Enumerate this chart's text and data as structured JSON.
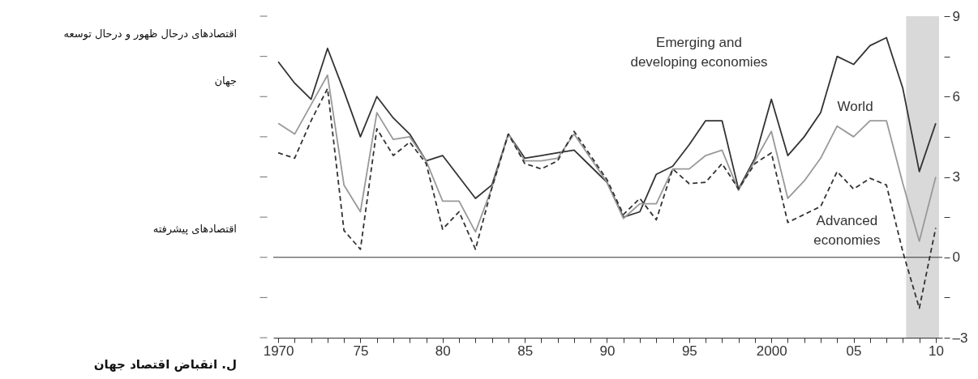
{
  "chart_data": {
    "type": "line",
    "title": "ل. انقباض اقتصاد جهان",
    "annotations": [
      "اقتصادهای درحال ظهور و درحال توسعه",
      "جهان",
      "اقتصادهای پیشرفته"
    ],
    "x": [
      1970,
      1971,
      1972,
      1973,
      1974,
      1975,
      1976,
      1977,
      1978,
      1979,
      1980,
      1981,
      1982,
      1983,
      1984,
      1985,
      1986,
      1987,
      1988,
      1989,
      1990,
      1991,
      1992,
      1993,
      1994,
      1995,
      1996,
      1997,
      1998,
      1999,
      2000,
      2001,
      2002,
      2003,
      2004,
      2005,
      2006,
      2007,
      2008,
      2009,
      2010
    ],
    "series": [
      {
        "name": "Emerging and\ndeveloping economies",
        "color": "#333333",
        "line_style": "solid",
        "values": [
          7.3,
          6.5,
          5.9,
          7.8,
          6.2,
          4.5,
          6.0,
          5.2,
          4.6,
          3.6,
          3.8,
          3.0,
          2.2,
          2.7,
          4.6,
          3.7,
          3.8,
          3.9,
          4.0,
          3.4,
          2.8,
          1.5,
          1.7,
          3.1,
          3.4,
          4.2,
          5.1,
          5.1,
          2.55,
          3.7,
          5.9,
          3.8,
          4.5,
          5.4,
          7.5,
          7.2,
          7.9,
          8.2,
          6.3,
          3.2,
          5.0
        ]
      },
      {
        "name": "World",
        "color": "#999999",
        "line_style": "solid",
        "values": [
          5.0,
          4.6,
          5.7,
          6.8,
          2.7,
          1.7,
          5.4,
          4.4,
          4.5,
          3.6,
          2.1,
          2.1,
          0.95,
          2.6,
          4.6,
          3.6,
          3.6,
          3.7,
          4.6,
          3.7,
          2.8,
          1.45,
          2.0,
          2.0,
          3.3,
          3.3,
          3.8,
          4.0,
          2.5,
          3.6,
          4.7,
          2.2,
          2.85,
          3.7,
          4.9,
          4.5,
          5.1,
          5.1,
          2.75,
          0.6,
          3.0
        ]
      },
      {
        "name": "Advanced\neconomies",
        "color": "#333333",
        "line_style": "dashed",
        "values": [
          3.9,
          3.7,
          5.1,
          6.3,
          1.0,
          0.3,
          4.8,
          3.8,
          4.3,
          3.5,
          1.05,
          1.7,
          0.3,
          2.6,
          4.6,
          3.5,
          3.3,
          3.6,
          4.7,
          3.8,
          2.9,
          1.6,
          2.2,
          1.4,
          3.3,
          2.75,
          2.8,
          3.5,
          2.55,
          3.5,
          3.9,
          1.3,
          1.6,
          1.9,
          3.2,
          2.55,
          2.95,
          2.7,
          0.2,
          -1.9,
          1.1
        ]
      }
    ],
    "xlim": [
      1969.7,
      2010.4
    ],
    "xticks": [
      1970,
      {
        "value": 1971,
        "label": null
      },
      {
        "value": 1972,
        "label": null
      },
      {
        "value": 1973,
        "label": null
      },
      {
        "value": 1974,
        "label": null
      },
      {
        "value": 1975,
        "label": "75"
      },
      {
        "value": 1976,
        "label": null
      },
      {
        "value": 1977,
        "label": null
      },
      {
        "value": 1978,
        "label": null
      },
      {
        "value": 1979,
        "label": null
      },
      {
        "value": 1980,
        "label": "80"
      },
      {
        "value": 1981,
        "label": null
      },
      {
        "value": 1982,
        "label": null
      },
      {
        "value": 1983,
        "label": null
      },
      {
        "value": 1984,
        "label": null
      },
      {
        "value": 1985,
        "label": "85"
      },
      {
        "value": 1986,
        "label": null
      },
      {
        "value": 1987,
        "label": null
      },
      {
        "value": 1988,
        "label": null
      },
      {
        "value": 1989,
        "label": null
      },
      {
        "value": 1990,
        "label": "90"
      },
      {
        "value": 1991,
        "label": null
      },
      {
        "value": 1992,
        "label": null
      },
      {
        "value": 1993,
        "label": null
      },
      {
        "value": 1994,
        "label": null
      },
      {
        "value": 1995,
        "label": "95"
      },
      {
        "value": 1996,
        "label": null
      },
      {
        "value": 1997,
        "label": null
      },
      {
        "value": 1998,
        "label": null
      },
      {
        "value": 1999,
        "label": null
      },
      2000,
      {
        "value": 2001,
        "label": null
      },
      {
        "value": 2002,
        "label": null
      },
      {
        "value": 2003,
        "label": null
      },
      {
        "value": 2004,
        "label": null
      },
      {
        "value": 2005,
        "label": "05"
      },
      {
        "value": 2006,
        "label": null
      },
      {
        "value": 2007,
        "label": null
      },
      {
        "value": 2008,
        "label": null
      },
      {
        "value": 2009,
        "label": null
      },
      {
        "value": 2010,
        "label": "10"
      }
    ],
    "ylim": [
      -3,
      9
    ],
    "yticks": [
      {
        "value": -3,
        "label": "–3"
      },
      {
        "value": -1.5,
        "label": null
      },
      0,
      {
        "value": 1.5,
        "label": null
      },
      3,
      {
        "value": 4.5,
        "label": null
      },
      6,
      {
        "value": 7.5,
        "label": null
      },
      9
    ],
    "ref_lines": [
      {
        "axis": "y",
        "value": 0,
        "color": "#333333"
      }
    ],
    "bands": [
      {
        "axis": "x",
        "from": 2008.2,
        "to": 2010.2,
        "color": "#d9d9d9"
      }
    ]
  }
}
